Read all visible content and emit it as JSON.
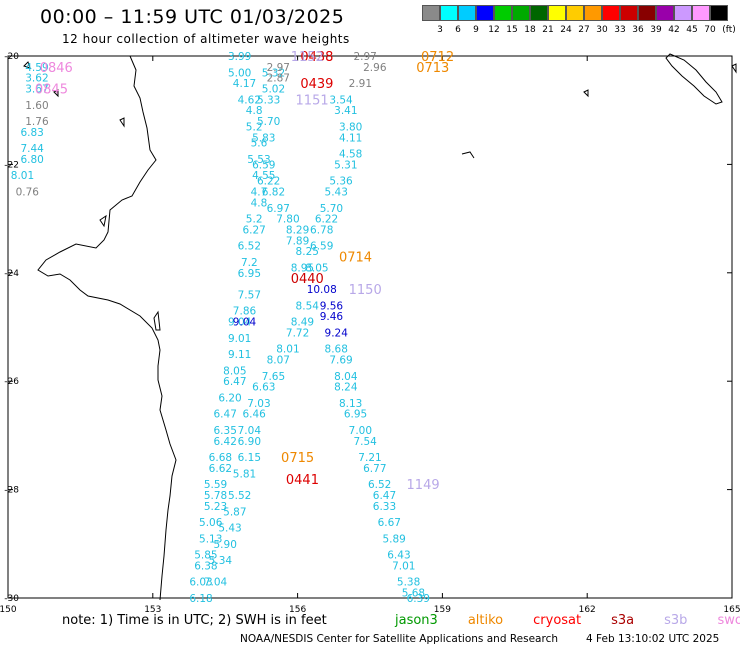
{
  "header": {
    "title": "00:00 – 11:59 UTC 01/03/2025",
    "subtitle": "12 hour collection of altimeter wave heights"
  },
  "scale": {
    "unit": "(ft)",
    "labels": [
      "3",
      "6",
      "9",
      "12",
      "15",
      "18",
      "21",
      "24",
      "27",
      "30",
      "33",
      "36",
      "39",
      "42",
      "45",
      "70"
    ],
    "colors": [
      "#8a8a8a",
      "#00ffff",
      "#00ccff",
      "#0000ff",
      "#00cc00",
      "#00aa00",
      "#006600",
      "#ffff00",
      "#ffcc00",
      "#ff9900",
      "#ff0000",
      "#cc0000",
      "#880000",
      "#9900aa",
      "#cc99ff",
      "#ff99ff",
      "#000000"
    ]
  },
  "map": {
    "lon_ticks": [
      "150",
      "153",
      "156",
      "159",
      "162",
      "165"
    ],
    "lat_ticks": [
      "-20",
      "-22",
      "-24",
      "-26",
      "-28",
      "-30"
    ],
    "lon_range": [
      150,
      165
    ],
    "lat_range": [
      -30,
      -20
    ]
  },
  "tracks": [
    {
      "color": "#22c0e0",
      "labels": [
        {
          "t": "3.99",
          "lon": 154.8,
          "lat": -20.0
        },
        {
          "t": "5.00",
          "lon": 154.8,
          "lat": -20.3
        },
        {
          "t": "4.17",
          "lon": 154.9,
          "lat": -20.5
        },
        {
          "t": "4.62",
          "lon": 155.0,
          "lat": -20.8
        },
        {
          "t": "4.8",
          "lon": 155.1,
          "lat": -21.0
        },
        {
          "t": "5.2",
          "lon": 155.1,
          "lat": -21.3
        },
        {
          "t": "5.6",
          "lon": 155.2,
          "lat": -21.6
        },
        {
          "t": "5.53",
          "lon": 155.2,
          "lat": -21.9
        },
        {
          "t": "4.55",
          "lon": 155.3,
          "lat": -22.2
        },
        {
          "t": "4.7",
          "lon": 155.2,
          "lat": -22.5
        },
        {
          "t": "4.8",
          "lon": 155.2,
          "lat": -22.7
        },
        {
          "t": "5.2",
          "lon": 155.1,
          "lat": -23.0
        },
        {
          "t": "6.27",
          "lon": 155.1,
          "lat": -23.2
        },
        {
          "t": "6.52",
          "lon": 155.0,
          "lat": -23.5
        },
        {
          "t": "7.2",
          "lon": 155.0,
          "lat": -23.8
        },
        {
          "t": "6.95",
          "lon": 155.0,
          "lat": -24.0
        },
        {
          "t": "7.57",
          "lon": 155.0,
          "lat": -24.4
        },
        {
          "t": "7.86",
          "lon": 154.9,
          "lat": -24.7
        },
        {
          "t": "9.04",
          "lon": 154.8,
          "lat": -24.9
        },
        {
          "t": "9.01",
          "lon": 154.8,
          "lat": -25.2
        },
        {
          "t": "9.11",
          "lon": 154.8,
          "lat": -25.5
        },
        {
          "t": "8.05",
          "lon": 154.7,
          "lat": -25.8
        },
        {
          "t": "6.47",
          "lon": 154.7,
          "lat": -26.0
        },
        {
          "t": "6.20",
          "lon": 154.6,
          "lat": -26.3
        },
        {
          "t": "6.47",
          "lon": 154.5,
          "lat": -26.6
        },
        {
          "t": "6.35",
          "lon": 154.5,
          "lat": -26.9
        },
        {
          "t": "6.42",
          "lon": 154.5,
          "lat": -27.1
        },
        {
          "t": "6.68",
          "lon": 154.4,
          "lat": -27.4
        },
        {
          "t": "6.62",
          "lon": 154.4,
          "lat": -27.6
        },
        {
          "t": "5.59",
          "lon": 154.3,
          "lat": -27.9
        },
        {
          "t": "5.78",
          "lon": 154.3,
          "lat": -28.1
        },
        {
          "t": "5.23",
          "lon": 154.3,
          "lat": -28.3
        },
        {
          "t": "5.06",
          "lon": 154.2,
          "lat": -28.6
        },
        {
          "t": "5.13",
          "lon": 154.2,
          "lat": -28.9
        },
        {
          "t": "5.85",
          "lon": 154.1,
          "lat": -29.2
        },
        {
          "t": "6.38",
          "lon": 154.1,
          "lat": -29.4
        },
        {
          "t": "6.03",
          "lon": 154.0,
          "lat": -29.7
        },
        {
          "t": "6.18",
          "lon": 154.0,
          "lat": -30.0
        }
      ]
    },
    {
      "color": "#22c0e0",
      "labels": [
        {
          "t": "5.32",
          "lon": 155.5,
          "lat": -20.3
        },
        {
          "t": "5.02",
          "lon": 155.5,
          "lat": -20.6
        },
        {
          "t": "5.33",
          "lon": 155.4,
          "lat": -20.8
        },
        {
          "t": "5.70",
          "lon": 155.4,
          "lat": -21.2
        },
        {
          "t": "5.83",
          "lon": 155.3,
          "lat": -21.5
        },
        {
          "t": "6.59",
          "lon": 155.3,
          "lat": -22.0
        },
        {
          "t": "6.22",
          "lon": 155.4,
          "lat": -22.3
        },
        {
          "t": "6.82",
          "lon": 155.5,
          "lat": -22.5
        },
        {
          "t": "6.97",
          "lon": 155.6,
          "lat": -22.8
        },
        {
          "t": "7.80",
          "lon": 155.8,
          "lat": -23.0
        },
        {
          "t": "8.29",
          "lon": 156.0,
          "lat": -23.2
        },
        {
          "t": "7.89",
          "lon": 156.0,
          "lat": -23.4
        },
        {
          "t": "8.25",
          "lon": 156.2,
          "lat": -23.6
        },
        {
          "t": "8.95",
          "lon": 156.1,
          "lat": -23.9
        },
        {
          "t": "8.54",
          "lon": 156.2,
          "lat": -24.6
        },
        {
          "t": "8.49",
          "lon": 156.1,
          "lat": -24.9
        },
        {
          "t": "7.72",
          "lon": 156.0,
          "lat": -25.1
        },
        {
          "t": "8.01",
          "lon": 155.8,
          "lat": -25.4
        },
        {
          "t": "8.07",
          "lon": 155.6,
          "lat": -25.6
        },
        {
          "t": "7.65",
          "lon": 155.5,
          "lat": -25.9
        },
        {
          "t": "6.63",
          "lon": 155.3,
          "lat": -26.1
        },
        {
          "t": "7.03",
          "lon": 155.2,
          "lat": -26.4
        },
        {
          "t": "6.46",
          "lon": 155.1,
          "lat": -26.6
        },
        {
          "t": "7.04",
          "lon": 155.0,
          "lat": -26.9
        },
        {
          "t": "6.90",
          "lon": 155.0,
          "lat": -27.1
        },
        {
          "t": "6.15",
          "lon": 155.0,
          "lat": -27.4
        },
        {
          "t": "5.81",
          "lon": 154.9,
          "lat": -27.7
        },
        {
          "t": "5.52",
          "lon": 154.8,
          "lat": -28.1
        },
        {
          "t": "5.87",
          "lon": 154.7,
          "lat": -28.4
        },
        {
          "t": "5.43",
          "lon": 154.6,
          "lat": -28.7
        },
        {
          "t": "5.90",
          "lon": 154.5,
          "lat": -29.0
        },
        {
          "t": "5.34",
          "lon": 154.4,
          "lat": -29.3
        },
        {
          "t": "7.04",
          "lon": 154.3,
          "lat": -29.7
        }
      ]
    },
    {
      "color": "#22c0e0",
      "labels": [
        {
          "t": "3.54",
          "lon": 156.9,
          "lat": -20.8
        },
        {
          "t": "3.41",
          "lon": 157.0,
          "lat": -21.0
        },
        {
          "t": "3.80",
          "lon": 157.1,
          "lat": -21.3
        },
        {
          "t": "4.11",
          "lon": 157.1,
          "lat": -21.5
        },
        {
          "t": "4.58",
          "lon": 157.1,
          "lat": -21.8
        },
        {
          "t": "5.31",
          "lon": 157.0,
          "lat": -22.0
        },
        {
          "t": "5.36",
          "lon": 156.9,
          "lat": -22.3
        },
        {
          "t": "5.43",
          "lon": 156.8,
          "lat": -22.5
        },
        {
          "t": "5.70",
          "lon": 156.7,
          "lat": -22.8
        },
        {
          "t": "6.22",
          "lon": 156.6,
          "lat": -23.0
        },
        {
          "t": "6.78",
          "lon": 156.5,
          "lat": -23.2
        },
        {
          "t": "6.59",
          "lon": 156.5,
          "lat": -23.5
        },
        {
          "t": "8.05",
          "lon": 156.4,
          "lat": -23.9
        },
        {
          "t": "8.68",
          "lon": 156.8,
          "lat": -25.4
        },
        {
          "t": "7.69",
          "lon": 156.9,
          "lat": -25.6
        },
        {
          "t": "8.04",
          "lon": 157.0,
          "lat": -25.9
        },
        {
          "t": "8.24",
          "lon": 157.0,
          "lat": -26.1
        },
        {
          "t": "8.13",
          "lon": 157.1,
          "lat": -26.4
        },
        {
          "t": "6.95",
          "lon": 157.2,
          "lat": -26.6
        },
        {
          "t": "7.00",
          "lon": 157.3,
          "lat": -26.9
        },
        {
          "t": "7.54",
          "lon": 157.4,
          "lat": -27.1
        },
        {
          "t": "7.21",
          "lon": 157.5,
          "lat": -27.4
        },
        {
          "t": "6.77",
          "lon": 157.6,
          "lat": -27.6
        },
        {
          "t": "6.52",
          "lon": 157.7,
          "lat": -27.9
        },
        {
          "t": "6.47",
          "lon": 157.8,
          "lat": -28.1
        },
        {
          "t": "6.33",
          "lon": 157.8,
          "lat": -28.3
        },
        {
          "t": "6.67",
          "lon": 157.9,
          "lat": -28.6
        },
        {
          "t": "5.89",
          "lon": 158.0,
          "lat": -28.9
        },
        {
          "t": "6.43",
          "lon": 158.1,
          "lat": -29.2
        },
        {
          "t": "7.01",
          "lon": 158.2,
          "lat": -29.4
        },
        {
          "t": "5.38",
          "lon": 158.3,
          "lat": -29.7
        },
        {
          "t": "5.68",
          "lon": 158.4,
          "lat": -29.9
        },
        {
          "t": "6.39",
          "lon": 158.5,
          "lat": -30.0
        }
      ]
    },
    {
      "color": "#0000cc",
      "labels": [
        {
          "t": "9.56",
          "lon": 156.7,
          "lat": -24.6
        },
        {
          "t": "9.46",
          "lon": 156.7,
          "lat": -24.8
        },
        {
          "t": "9.24",
          "lon": 156.8,
          "lat": -25.1
        },
        {
          "t": "10.08",
          "lon": 156.5,
          "lat": -24.3
        },
        {
          "t": "9.04",
          "lon": 154.9,
          "lat": -24.9
        }
      ]
    },
    {
      "color": "#808080",
      "labels": [
        {
          "t": "2.97",
          "lon": 157.4,
          "lat": -20.0
        },
        {
          "t": "2.96",
          "lon": 157.6,
          "lat": -20.2
        },
        {
          "t": "2.91",
          "lon": 157.3,
          "lat": -20.5
        },
        {
          "t": "2.97",
          "lon": 155.6,
          "lat": -20.2
        },
        {
          "t": "2.87",
          "lon": 155.6,
          "lat": -20.4
        }
      ]
    },
    {
      "color": "#22c0e0",
      "labels": [
        {
          "t": "4.59",
          "lon": 150.6,
          "lat": -20.2
        },
        {
          "t": "3.62",
          "lon": 150.6,
          "lat": -20.4
        },
        {
          "t": "3.67",
          "lon": 150.6,
          "lat": -20.6
        },
        {
          "t": "6.83",
          "lon": 150.5,
          "lat": -21.4
        },
        {
          "t": "7.44",
          "lon": 150.5,
          "lat": -21.7
        },
        {
          "t": "6.80",
          "lon": 150.5,
          "lat": -21.9
        },
        {
          "t": "8.01",
          "lon": 150.3,
          "lat": -22.2
        }
      ]
    },
    {
      "color": "#808080",
      "labels": [
        {
          "t": "1.60",
          "lon": 150.6,
          "lat": -20.9
        },
        {
          "t": "1.76",
          "lon": 150.6,
          "lat": -21.2
        },
        {
          "t": "0.76",
          "lon": 150.4,
          "lat": -22.5
        }
      ]
    }
  ],
  "timestamps": [
    {
      "t": "0438",
      "lon": 156.4,
      "lat": -20.0,
      "color": "#dd0000"
    },
    {
      "t": "0439",
      "lon": 156.4,
      "lat": -20.5,
      "color": "#dd0000"
    },
    {
      "t": "0440",
      "lon": 156.2,
      "lat": -24.1,
      "color": "#cc0000"
    },
    {
      "t": "0441",
      "lon": 156.1,
      "lat": -27.8,
      "color": "#dd0000"
    },
    {
      "t": "0712",
      "lon": 158.9,
      "lat": -20.0,
      "color": "#ee8800"
    },
    {
      "t": "0713",
      "lon": 158.8,
      "lat": -20.2,
      "color": "#ee8800"
    },
    {
      "t": "0714",
      "lon": 157.2,
      "lat": -23.7,
      "color": "#ee8800"
    },
    {
      "t": "0715",
      "lon": 156.0,
      "lat": -27.4,
      "color": "#ee8800"
    },
    {
      "t": "1151",
      "lon": 156.3,
      "lat": -20.8,
      "color": "#b8a8e8"
    },
    {
      "t": "1150",
      "lon": 157.4,
      "lat": -24.3,
      "color": "#b8a8e8"
    },
    {
      "t": "1149",
      "lon": 158.6,
      "lat": -27.9,
      "color": "#b8a8e8"
    },
    {
      "t": "1152",
      "lon": 156.2,
      "lat": -20.0,
      "color": "#b8a8e8"
    },
    {
      "t": "0846",
      "lon": 151.0,
      "lat": -20.2,
      "color": "#ee88dd"
    },
    {
      "t": "0845",
      "lon": 150.9,
      "lat": -20.6,
      "color": "#ee88dd"
    }
  ],
  "footer": {
    "note": "note: 1) Time is in UTC; 2) SWH is in feet",
    "legend": [
      {
        "name": "jason3",
        "color": "#009900"
      },
      {
        "name": "altiko",
        "color": "#ee8800"
      },
      {
        "name": "cryosat",
        "color": "#ff0000"
      },
      {
        "name": "s3a",
        "color": "#aa0000"
      },
      {
        "name": "s3b",
        "color": "#b8a8e8"
      },
      {
        "name": "swot",
        "color": "#ee88dd"
      }
    ],
    "credit": "NOAA/NESDIS Center for Satellite Applications and Research",
    "stamp": "4 Feb 13:10:02 UTC 2025"
  }
}
